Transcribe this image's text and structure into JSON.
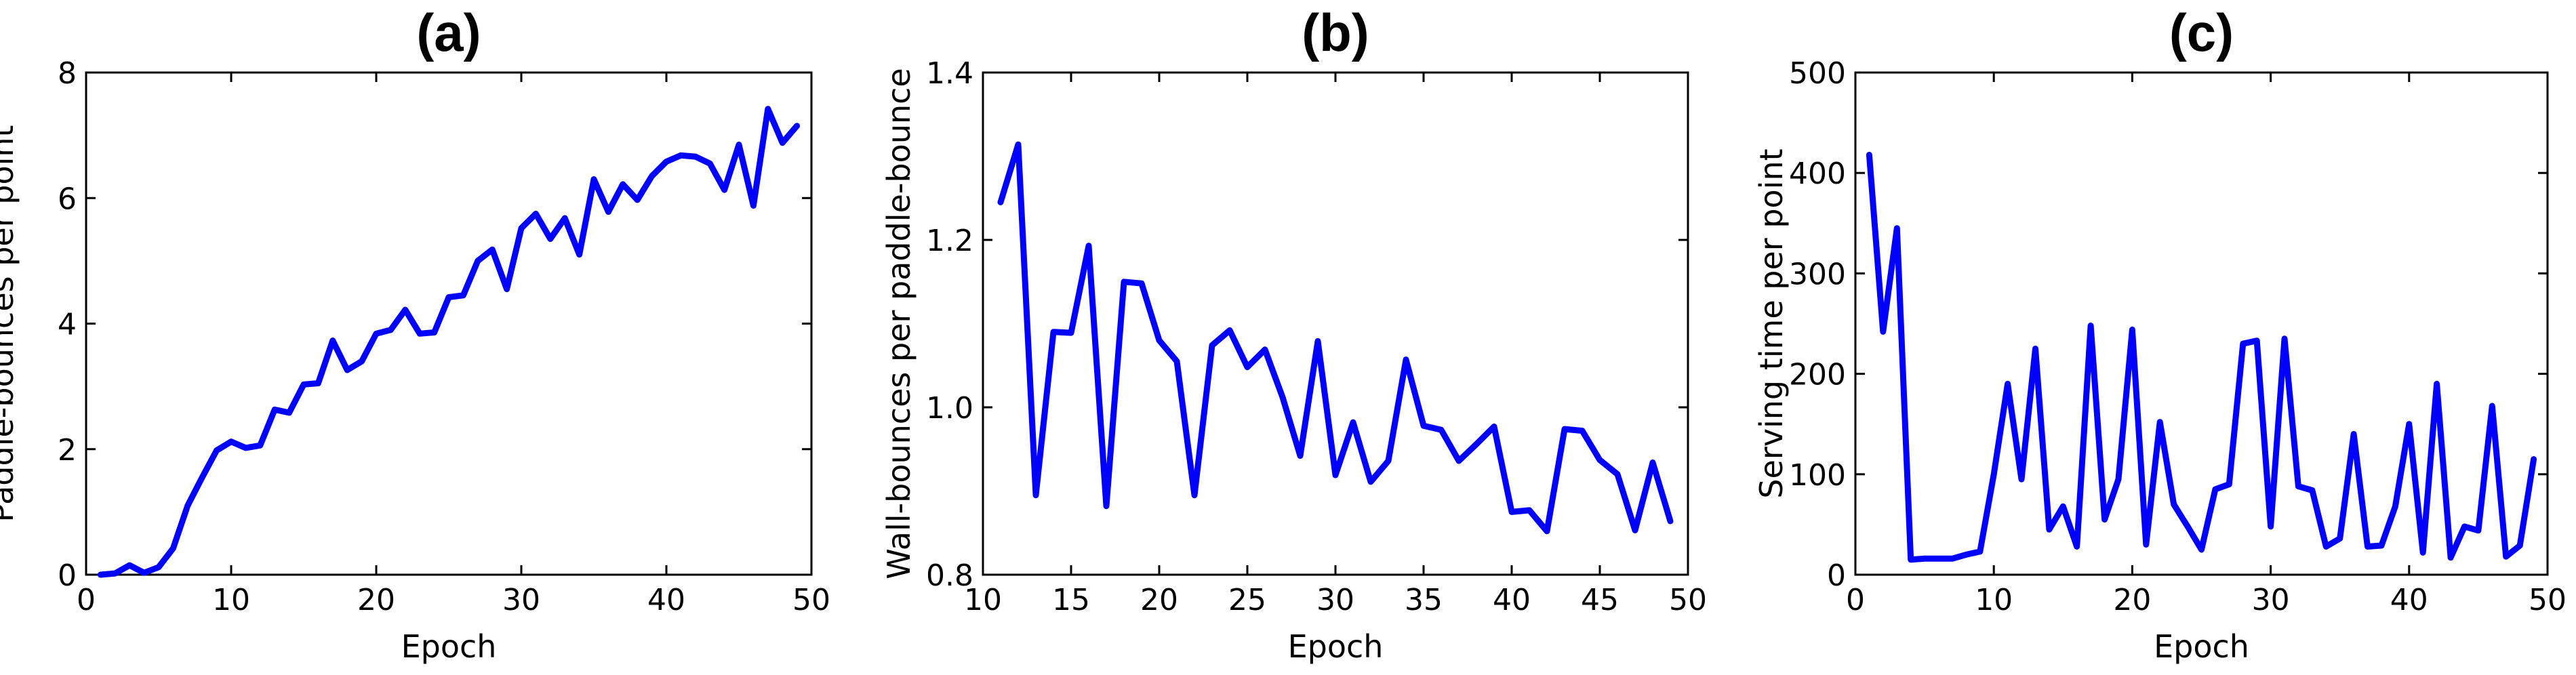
{
  "colors": {
    "series": "#0000ff",
    "axes": "#000000",
    "background": "#ffffff"
  },
  "chart_data": [
    {
      "type": "line",
      "title": "(a)",
      "xlabel": "Epoch",
      "ylabel": "Paddle-bounces per point",
      "xlim": [
        0,
        50
      ],
      "ylim": [
        0,
        8
      ],
      "xticks": [
        0,
        10,
        20,
        30,
        40,
        50
      ],
      "yticks": [
        0,
        2,
        4,
        6,
        8
      ],
      "grid": false,
      "series": [
        {
          "x": [
            1,
            2,
            3,
            4,
            5,
            6,
            7,
            8,
            9,
            10,
            11,
            12,
            13,
            14,
            15,
            16,
            17,
            18,
            19,
            20,
            21,
            22,
            23,
            24,
            25,
            26,
            27,
            28,
            29,
            30,
            31,
            32,
            33,
            34,
            35,
            36,
            37,
            38,
            39,
            40,
            41,
            42,
            43,
            44,
            45,
            46,
            47,
            48,
            49
          ],
          "y": [
            0.0,
            0.02,
            0.15,
            0.03,
            0.12,
            0.42,
            1.1,
            1.55,
            1.98,
            2.12,
            2.02,
            2.06,
            2.63,
            2.58,
            3.03,
            3.05,
            3.73,
            3.26,
            3.4,
            3.84,
            3.9,
            4.22,
            3.84,
            3.86,
            4.42,
            4.45,
            5.0,
            5.18,
            4.55,
            5.52,
            5.75,
            5.35,
            5.68,
            5.1,
            6.3,
            5.78,
            6.22,
            5.97,
            6.35,
            6.58,
            6.68,
            6.66,
            6.55,
            6.13,
            6.85,
            5.88,
            7.42,
            6.88,
            7.15
          ]
        }
      ]
    },
    {
      "type": "line",
      "title": "(b)",
      "xlabel": "Epoch",
      "ylabel": "Wall-bounces per paddle-bounce",
      "xlim": [
        10,
        50
      ],
      "ylim": [
        0.8,
        1.4
      ],
      "xticks": [
        10,
        15,
        20,
        25,
        30,
        35,
        40,
        45,
        50
      ],
      "yticks": [
        "0.8",
        "1.0",
        "1.2",
        "1.4"
      ],
      "grid": false,
      "series": [
        {
          "x": [
            11,
            12,
            13,
            14,
            15,
            16,
            17,
            18,
            19,
            20,
            21,
            22,
            23,
            24,
            25,
            26,
            27,
            28,
            29,
            30,
            31,
            32,
            33,
            34,
            35,
            36,
            37,
            38,
            39,
            40,
            41,
            42,
            43,
            44,
            45,
            46,
            47,
            48,
            49
          ],
          "y": [
            1.245,
            1.314,
            0.895,
            1.09,
            1.089,
            1.193,
            0.882,
            1.15,
            1.148,
            1.08,
            1.055,
            0.895,
            1.074,
            1.092,
            1.048,
            1.069,
            1.012,
            0.942,
            1.079,
            0.919,
            0.982,
            0.911,
            0.936,
            1.057,
            0.978,
            0.973,
            0.936,
            0.956,
            0.977,
            0.875,
            0.877,
            0.852,
            0.974,
            0.972,
            0.937,
            0.92,
            0.853,
            0.934,
            0.864
          ]
        }
      ]
    },
    {
      "type": "line",
      "title": "(c)",
      "xlabel": "Epoch",
      "ylabel": "Serving time per point",
      "xlim": [
        0,
        50
      ],
      "ylim": [
        0,
        500
      ],
      "xticks": [
        0,
        10,
        20,
        30,
        40,
        50
      ],
      "yticks": [
        0,
        100,
        200,
        300,
        400,
        500
      ],
      "grid": false,
      "series": [
        {
          "x": [
            1,
            2,
            3,
            4,
            5,
            6,
            7,
            8,
            9,
            10,
            11,
            12,
            13,
            14,
            15,
            16,
            17,
            18,
            19,
            20,
            21,
            22,
            23,
            24,
            25,
            26,
            27,
            28,
            29,
            30,
            31,
            32,
            33,
            34,
            35,
            36,
            37,
            38,
            39,
            40,
            41,
            42,
            43,
            44,
            45,
            46,
            47,
            48,
            49
          ],
          "y": [
            418,
            242,
            345,
            15,
            16,
            16,
            16,
            20,
            23,
            100,
            190,
            95,
            225,
            45,
            68,
            28,
            248,
            55,
            95,
            244,
            30,
            152,
            70,
            48,
            25,
            85,
            90,
            230,
            233,
            48,
            235,
            88,
            84,
            28,
            36,
            140,
            28,
            29,
            68,
            150,
            22,
            190,
            17,
            48,
            44,
            168,
            18,
            29,
            115
          ]
        }
      ]
    }
  ]
}
